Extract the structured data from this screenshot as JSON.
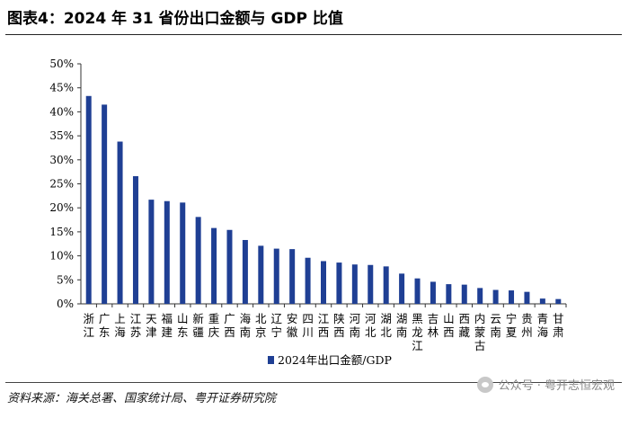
{
  "header": {
    "title": "图表4：2024 年 31 省份出口金额与 GDP 比值"
  },
  "footer": {
    "source": "资料来源：海关总署、国家统计局、粤开证券研究院",
    "watermark": "公众号 · 粤开志恒宏观"
  },
  "colors": {
    "bar": "#1f3f94",
    "axis": "#333333"
  },
  "chart_data": {
    "type": "bar",
    "title": "图表4：2024 年 31 省份出口金额与 GDP 比值",
    "xlabel": "",
    "ylabel": "",
    "ylim": [
      0,
      50
    ],
    "yticks": [
      "0%",
      "5%",
      "10%",
      "15%",
      "20%",
      "25%",
      "30%",
      "35%",
      "40%",
      "45%",
      "50%"
    ],
    "grid": false,
    "legend_position": "bottom-center",
    "series": [
      {
        "name": "2024年出口金额/GDP",
        "values": [
          43.3,
          41.5,
          33.8,
          26.6,
          21.7,
          21.4,
          21.1,
          18.1,
          15.8,
          15.4,
          13.3,
          12.1,
          11.5,
          11.4,
          9.6,
          8.9,
          8.6,
          8.2,
          8.1,
          7.8,
          6.3,
          5.3,
          4.6,
          4.1,
          4.0,
          3.3,
          2.9,
          2.8,
          2.5,
          1.1,
          1.0
        ]
      }
    ],
    "categories": [
      "浙江",
      "广东",
      "上海",
      "江苏",
      "天津",
      "福建",
      "山东",
      "新疆",
      "重庆",
      "广西",
      "海南",
      "北京",
      "辽宁",
      "安徽",
      "四川",
      "江西",
      "陕西",
      "河南",
      "河北",
      "湖北",
      "湖南",
      "黑龙江",
      "吉林",
      "山西",
      "西藏",
      "内蒙古",
      "云南",
      "宁夏",
      "贵州",
      "青海",
      "甘肃"
    ]
  }
}
